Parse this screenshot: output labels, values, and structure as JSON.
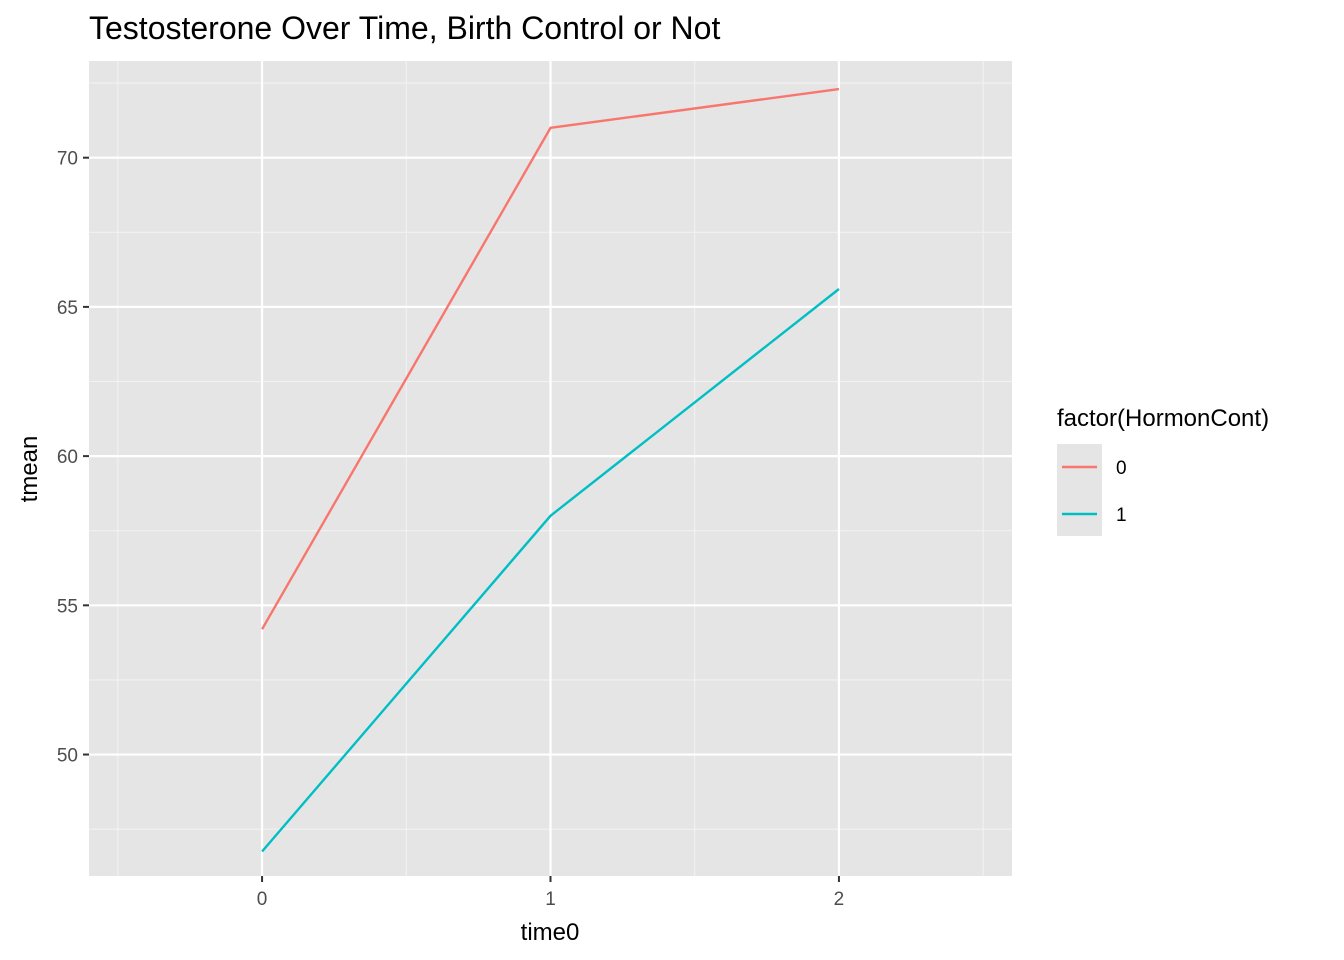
{
  "chart_data": {
    "type": "line",
    "title": "Testosterone Over Time, Birth Control or Not",
    "xlabel": "time0",
    "ylabel": "tmean",
    "x": [
      0,
      1,
      2
    ],
    "x_ticks": [
      "0",
      "1",
      "2"
    ],
    "xlim": [
      -0.6,
      2.6
    ],
    "y_ticks": [
      "50",
      "55",
      "60",
      "65",
      "70"
    ],
    "y_tick_values": [
      50,
      55,
      60,
      65,
      70
    ],
    "ylim": [
      45.93,
      73.24
    ],
    "grid": true,
    "legend": {
      "title": "factor(HormonCont)",
      "placement": "right"
    },
    "series": [
      {
        "name": "0",
        "color": "#F8766D",
        "values": [
          54.2,
          71.0,
          72.3
        ]
      },
      {
        "name": "1",
        "color": "#00BFC4",
        "values": [
          46.75,
          58.0,
          65.6
        ]
      }
    ],
    "colors": {
      "panel_background": "#E5E5E5",
      "grid_major": "#FFFFFF",
      "grid_minor": "#F2F2F2",
      "tick_mark": "#333333"
    }
  }
}
